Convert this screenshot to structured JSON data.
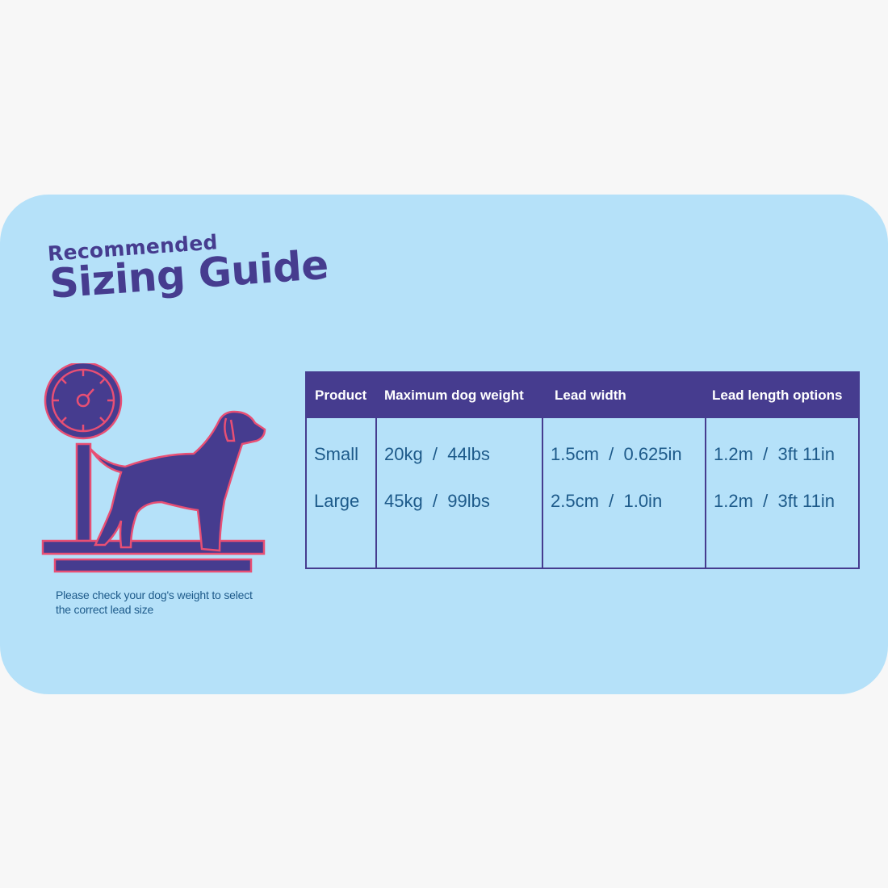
{
  "title": {
    "line1": "Recommended",
    "line2": "Sizing Guide"
  },
  "illustration": {
    "name": "dog-on-scale-icon",
    "colors": {
      "fill": "#463c8f",
      "outline": "#e84f74"
    }
  },
  "note": "Please check your dog's weight to select the correct lead size",
  "table": {
    "headers": [
      "Product",
      "Maximum dog weight",
      "Lead width",
      "Lead length options"
    ],
    "rows": [
      [
        "Small",
        "20kg  /  44lbs",
        "1.5cm  /  0.625in",
        "1.2m  /  3ft 11in"
      ],
      [
        "Large",
        "45kg  /  99lbs",
        "2.5cm  /  1.0in",
        "1.2m  /  3ft 11in"
      ]
    ]
  },
  "colors": {
    "background": "#f7f7f7",
    "card": "#b5e1f9",
    "accent": "#463c8f",
    "text": "#1d5a8a"
  }
}
